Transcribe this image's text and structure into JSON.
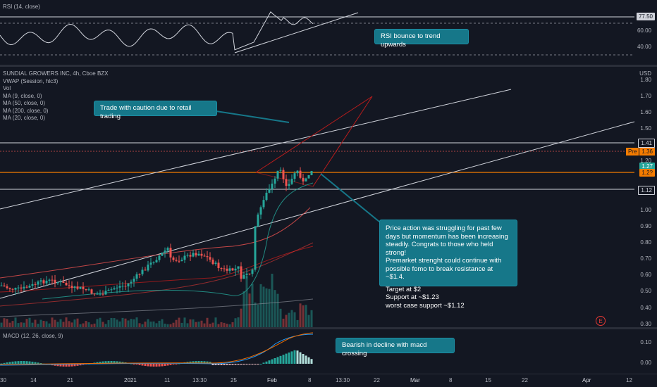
{
  "rsi": {
    "legend": "RSI (14, close)",
    "axis": {
      "top_value": "77.50",
      "tick1": "60.00",
      "tick2": "40.00"
    },
    "note": "RSI bounce to trend upwards"
  },
  "price": {
    "legend": [
      "SUNDIAL GROWERS INC, 4h, Cboe BZX",
      "VWAP (Session, hlc3)",
      "Vol",
      "MA (9, close, 0)",
      "MA (50, close, 0)",
      "MA (200, close, 0)",
      "MA (20, close, 0)"
    ],
    "currency": "USD",
    "axis_ticks": [
      "1.80",
      "1.70",
      "1.60",
      "1.50",
      "1.20",
      "1.00",
      "0.90",
      "0.80",
      "0.70",
      "0.60",
      "0.50",
      "0.40",
      "0.30"
    ],
    "tags": {
      "level_top": "1.41",
      "pre_label": "Pre",
      "pre_value": "1.36",
      "current": "1.27",
      "orange_level": "1.2?",
      "level_bottom": "1.12"
    },
    "notes": {
      "caution": "Trade with caution due to retail trading",
      "analysis_lines": [
        "Price action was struggling for past few",
        "days but momentum has been increasing",
        "steadily. Congrats to those who held strong!",
        "Premarket strenght could continue with",
        "possible fomo to break resistance at ~$1.4.",
        "",
        "Target at $2",
        "Support at ~$1.23",
        "worst case support ~$1.12"
      ]
    },
    "event_icon": "E"
  },
  "macd": {
    "legend": "MACD (12, 26, close, 9)",
    "axis": {
      "tick1": "0.10",
      "tick2": "0.00"
    },
    "note": "Bearish in decline with macd crossing"
  },
  "xaxis": {
    "labels": [
      "30",
      "14",
      "21",
      "2021",
      "11",
      "13:30",
      "25",
      "Feb",
      "8",
      "13:30",
      "22",
      "Mar",
      "8",
      "15",
      "22",
      "Apr",
      "12"
    ]
  },
  "colors": {
    "background": "#131722",
    "note_bg": "#167789",
    "up_candle": "#26a69a",
    "down_candle": "#ef5350",
    "orange_line": "#f57c00"
  }
}
